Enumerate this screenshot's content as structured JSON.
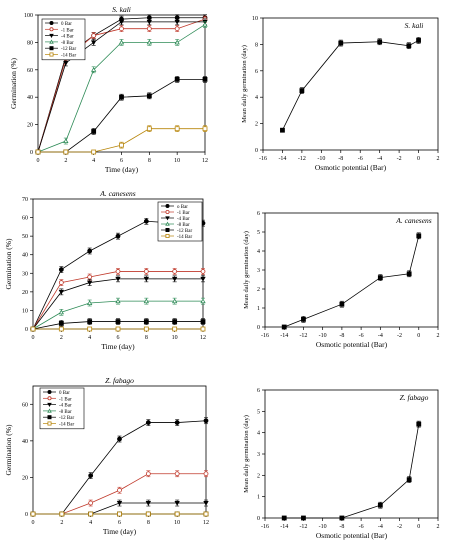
{
  "chart_data": [
    {
      "type": "line",
      "title": "S. kali",
      "xlabel": "Time (day)",
      "ylabel": "Germination (%)",
      "xlim": [
        0,
        12
      ],
      "ylim": [
        0,
        100
      ],
      "xticks": [
        0,
        2,
        4,
        6,
        8,
        10,
        12
      ],
      "yticks": [
        0,
        20,
        40,
        60,
        80,
        100
      ],
      "legend": "top-left",
      "x": [
        0,
        2,
        4,
        6,
        8,
        10,
        12
      ],
      "series": [
        {
          "name": "0 Bar",
          "marker": "filled-circle",
          "values": [
            0,
            70,
            85,
            97,
            98,
            98,
            98
          ]
        },
        {
          "name": "-1 Bar",
          "marker": "open-circle",
          "values": [
            0,
            68,
            85,
            90,
            90,
            90,
            97
          ]
        },
        {
          "name": "-4 Bar",
          "marker": "filled-triangle-down",
          "values": [
            0,
            65,
            80,
            95,
            95,
            95,
            95
          ]
        },
        {
          "name": "-8 Bar",
          "marker": "open-triangle-up",
          "values": [
            0,
            8,
            60,
            80,
            80,
            80,
            93
          ]
        },
        {
          "name": "-12 Bar",
          "marker": "filled-square",
          "values": [
            0,
            0,
            15,
            40,
            41,
            53,
            53
          ]
        },
        {
          "name": "-14 Bar",
          "marker": "open-square",
          "values": [
            0,
            0,
            0,
            5,
            17,
            17,
            17
          ]
        }
      ]
    },
    {
      "type": "line",
      "title": "S. kali",
      "xlabel": "Osmotic potential (Bar)",
      "ylabel": "Mean daily germination (day)",
      "xlim": [
        -16,
        2
      ],
      "ylim": [
        0,
        10
      ],
      "xticks": [
        -16,
        -14,
        -12,
        -10,
        -8,
        -6,
        -4,
        -2,
        0,
        2
      ],
      "yticks": [
        0,
        2,
        4,
        6,
        8,
        10
      ],
      "series": [
        {
          "marker": "filled-square",
          "x": [
            -14,
            -12,
            -8,
            -4,
            -1,
            0
          ],
          "values": [
            1.5,
            4.5,
            8.1,
            8.2,
            7.9,
            8.3
          ]
        }
      ]
    },
    {
      "type": "line",
      "title": "A. canesens",
      "xlabel": "Time (day)",
      "ylabel": "Germination (%)",
      "xlim": [
        0,
        12
      ],
      "ylim": [
        0,
        70
      ],
      "xticks": [
        0,
        2,
        4,
        6,
        8,
        10,
        12
      ],
      "yticks": [
        0,
        10,
        20,
        30,
        40,
        50,
        60,
        70
      ],
      "legend": "top-right",
      "x": [
        0,
        2,
        4,
        6,
        8,
        10,
        12
      ],
      "series": [
        {
          "name": "o Bar",
          "marker": "filled-circle",
          "values": [
            0,
            32,
            42,
            50,
            58,
            57,
            57
          ]
        },
        {
          "name": "-1 Bar",
          "marker": "open-circle",
          "values": [
            0,
            25,
            28,
            31,
            31,
            31,
            31
          ]
        },
        {
          "name": "-4 Bar",
          "marker": "filled-triangle-down",
          "values": [
            0,
            20,
            25,
            27,
            27,
            27,
            27
          ]
        },
        {
          "name": "-8 Bar",
          "marker": "open-triangle-up",
          "values": [
            0,
            9,
            14,
            15,
            15,
            15,
            15
          ]
        },
        {
          "name": "-12 Bar",
          "marker": "filled-square",
          "values": [
            0,
            3,
            4,
            4,
            4,
            4,
            4
          ]
        },
        {
          "name": "-14 Bar",
          "marker": "open-square",
          "values": [
            0,
            0,
            0,
            0,
            0,
            0,
            0
          ]
        }
      ]
    },
    {
      "type": "line",
      "title": "A. canesens",
      "xlabel": "Osmotic potential (Bar)",
      "ylabel": "Mean daily germination (day)",
      "xlim": [
        -16,
        2
      ],
      "ylim": [
        0,
        6
      ],
      "xticks": [
        -16,
        -14,
        -12,
        -10,
        -8,
        -6,
        -4,
        -2,
        0,
        2
      ],
      "yticks": [
        0,
        1,
        2,
        3,
        4,
        5,
        6
      ],
      "series": [
        {
          "marker": "filled-square",
          "x": [
            -14,
            -12,
            -8,
            -4,
            -1,
            0
          ],
          "values": [
            0,
            0.4,
            1.2,
            2.6,
            2.8,
            4.8
          ]
        }
      ]
    },
    {
      "type": "line",
      "title": "Z. fabago",
      "xlabel": "Time (day)",
      "ylabel": "Germination (%)",
      "xlim": [
        0,
        12
      ],
      "ylim": [
        0,
        70
      ],
      "xticks": [
        0,
        2,
        4,
        6,
        8,
        10,
        12
      ],
      "yticks": [
        0,
        20,
        40,
        60
      ],
      "legend": "top-left",
      "x": [
        0,
        2,
        4,
        6,
        8,
        10,
        12
      ],
      "series": [
        {
          "name": "0 Bar",
          "marker": "filled-circle",
          "values": [
            0,
            0,
            21,
            41,
            50,
            50,
            51
          ]
        },
        {
          "name": "-1 Bar",
          "marker": "open-circle",
          "values": [
            0,
            0,
            6,
            13,
            22,
            22,
            22
          ]
        },
        {
          "name": "-4 Bar",
          "marker": "filled-triangle-down",
          "values": [
            0,
            0,
            0,
            6,
            6,
            6,
            6
          ]
        },
        {
          "name": "-8 Bar",
          "marker": "open-triangle-up",
          "values": [
            0,
            0,
            0,
            0,
            0,
            0,
            0
          ]
        },
        {
          "name": "-12 Bar",
          "marker": "filled-square",
          "values": [
            0,
            0,
            0,
            0,
            0,
            0,
            0
          ]
        },
        {
          "name": "-14 Bar",
          "marker": "open-square",
          "values": [
            0,
            0,
            0,
            0,
            0,
            0,
            0
          ]
        }
      ]
    },
    {
      "type": "line",
      "title": "Z. fabago",
      "xlabel": "Osmotic potential (Bar)",
      "ylabel": "Mean daily germination (day)",
      "xlim": [
        -16,
        2
      ],
      "ylim": [
        0,
        6
      ],
      "xticks": [
        -16,
        -14,
        -12,
        -10,
        -8,
        -6,
        -4,
        -2,
        0,
        2
      ],
      "yticks": [
        0,
        1,
        2,
        3,
        4,
        5,
        6
      ],
      "series": [
        {
          "marker": "filled-square",
          "x": [
            -14,
            -12,
            -8,
            -4,
            -1,
            0
          ],
          "values": [
            0,
            0,
            0,
            0.6,
            1.8,
            4.4
          ]
        }
      ]
    }
  ],
  "colors": {
    "0": "#000000",
    "1": "#c0392b",
    "2": "#000000",
    "3": "#2e8b57",
    "4": "#000000",
    "5": "#b8860b",
    "mdg": "#000000"
  }
}
